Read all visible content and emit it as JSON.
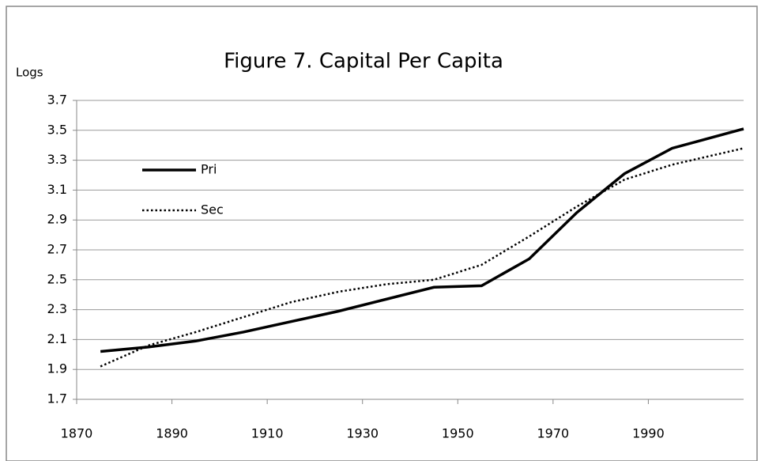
{
  "chart_data": {
    "type": "line",
    "title": "Figure 7. Capital Per Capita",
    "y_label": "Logs",
    "x": [
      1875,
      1885,
      1895,
      1905,
      1915,
      1925,
      1935,
      1945,
      1955,
      1965,
      1975,
      1985,
      1995,
      2010
    ],
    "series": [
      {
        "name": "Pri",
        "color": "#000000",
        "style": "solid",
        "values": [
          2.02,
          2.05,
          2.09,
          2.15,
          2.22,
          2.29,
          2.37,
          2.45,
          2.46,
          2.64,
          2.95,
          3.21,
          3.38,
          3.51
        ]
      },
      {
        "name": "Sec",
        "color": "#000000",
        "style": "dotted",
        "values": [
          1.92,
          2.06,
          2.15,
          2.25,
          2.35,
          2.42,
          2.47,
          2.5,
          2.6,
          2.79,
          2.99,
          3.17,
          3.27,
          3.38
        ]
      }
    ],
    "xlim": [
      1870,
      2010
    ],
    "xticks": [
      1870,
      1890,
      1910,
      1930,
      1950,
      1970,
      1990
    ],
    "ylim": [
      1.7,
      3.7
    ],
    "yticks": [
      1.7,
      1.9,
      2.1,
      2.3,
      2.5,
      2.7,
      2.9,
      3.1,
      3.3,
      3.5,
      3.7
    ],
    "grid": true,
    "legend": "upper-left"
  }
}
